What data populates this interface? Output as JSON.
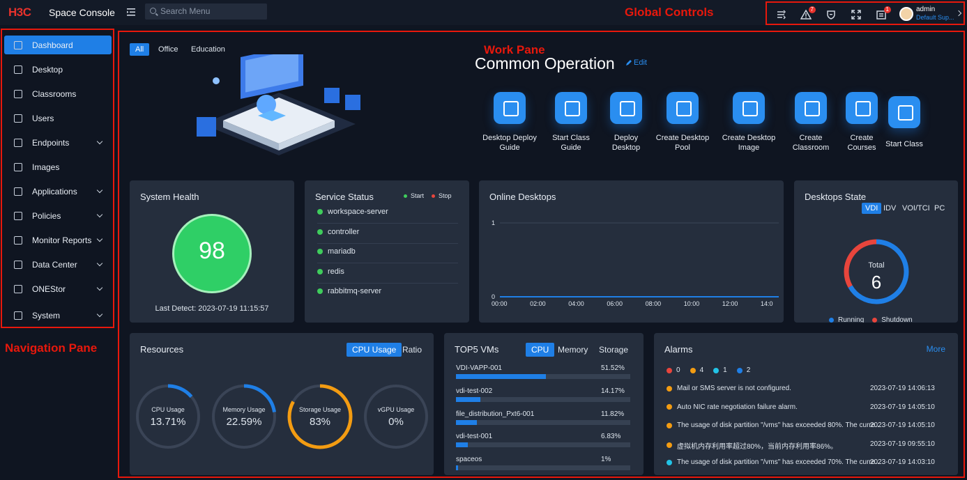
{
  "header": {
    "logo": "H3C",
    "brand": "Space Console",
    "search_placeholder": "Search Menu",
    "user": {
      "name": "admin",
      "role": "Default Sup..."
    },
    "badges": {
      "alerts": "7",
      "tasks": "1"
    }
  },
  "labels": {
    "global": "Global Controls",
    "nav": "Navigation Pane",
    "work": "Work Pane"
  },
  "nav": [
    {
      "label": "Dashboard",
      "active": true,
      "expandable": false
    },
    {
      "label": "Desktop",
      "expandable": false
    },
    {
      "label": "Classrooms",
      "expandable": false
    },
    {
      "label": "Users",
      "expandable": false
    },
    {
      "label": "Endpoints",
      "expandable": true
    },
    {
      "label": "Images",
      "expandable": false
    },
    {
      "label": "Applications",
      "expandable": true
    },
    {
      "label": "Policies",
      "expandable": true
    },
    {
      "label": "Monitor Reports",
      "expandable": true
    },
    {
      "label": "Data Center",
      "expandable": true
    },
    {
      "label": "ONEStor",
      "expandable": true
    },
    {
      "label": "System",
      "expandable": true
    }
  ],
  "scene_tabs": [
    "All",
    "Office",
    "Education"
  ],
  "common": {
    "title": "Common Operation",
    "edit": "Edit",
    "ops": [
      {
        "line1": "Desktop Deploy",
        "line2": "Guide"
      },
      {
        "line1": "Start Class",
        "line2": "Guide"
      },
      {
        "line1": "Deploy",
        "line2": "Desktop"
      },
      {
        "line1": "Create Desktop",
        "line2": "Pool"
      },
      {
        "line1": "Create Desktop",
        "line2": "Image"
      },
      {
        "line1": "Create",
        "line2": "Classroom"
      },
      {
        "line1": "Create",
        "line2": "Courses"
      },
      {
        "line1": "Start Class",
        "line2": ""
      }
    ]
  },
  "health": {
    "title": "System Health",
    "score": "98",
    "last_detect": "Last Detect: 2023-07-19 11:15:57"
  },
  "service": {
    "title": "Service Status",
    "legend_start": "Start",
    "legend_stop": "Stop",
    "items": [
      "workspace-server",
      "controller",
      "mariadb",
      "redis",
      "rabbitmq-server"
    ]
  },
  "online": {
    "title": "Online Desktops",
    "chart_data": {
      "type": "line",
      "x": [
        "00:00",
        "02:00",
        "04:00",
        "06:00",
        "08:00",
        "10:00",
        "12:00",
        "14:0"
      ],
      "series": [
        {
          "values": [
            0,
            0,
            0,
            0,
            0,
            0,
            0,
            0
          ]
        }
      ],
      "y_ticks": [
        "0",
        "1"
      ],
      "ylim": [
        0,
        1
      ],
      "grid": true
    }
  },
  "state": {
    "title": "Desktops State",
    "tabs": [
      "VDI",
      "IDV",
      "VOI/TCI",
      "PC"
    ],
    "total_label": "Total",
    "total": "6",
    "legend": [
      "Running",
      "Shutdown"
    ],
    "chart_data": {
      "type": "pie",
      "categories": [
        "Running",
        "Shutdown"
      ],
      "values": [
        4,
        2
      ],
      "colors": [
        "#1f7fe6",
        "#e8453c"
      ]
    }
  },
  "resources": {
    "title": "Resources",
    "tabs": [
      "CPU Usage",
      "Ratio"
    ],
    "gauges": [
      {
        "label": "CPU Usage",
        "value": "13.71%",
        "fraction": 0.1371,
        "color": "#1f7fe6"
      },
      {
        "label": "Memory Usage",
        "value": "22.59%",
        "fraction": 0.2259,
        "color": "#1f7fe6"
      },
      {
        "label": "Storage Usage",
        "value": "83%",
        "fraction": 0.83,
        "color": "#f39c12"
      },
      {
        "label": "vGPU Usage",
        "value": "0%",
        "fraction": 0,
        "color": "#1f7fe6"
      }
    ]
  },
  "top5": {
    "title": "TOP5 VMs",
    "tabs": [
      "CPU",
      "Memory",
      "Storage"
    ],
    "chart_data": {
      "type": "bar",
      "categories": [
        "VDI-VAPP-001",
        "vdi-test-002",
        "file_distribution_Pxt6-001",
        "vdi-test-001",
        "spaceos"
      ],
      "values": [
        51.52,
        14.17,
        11.82,
        6.83,
        1
      ],
      "labels": [
        "51.52%",
        "14.17%",
        "11.82%",
        "6.83%",
        "1%"
      ],
      "ylim": [
        0,
        100
      ]
    }
  },
  "alarms": {
    "title": "Alarms",
    "more": "More",
    "counts": [
      {
        "value": "0",
        "color": "#e8453c"
      },
      {
        "value": "4",
        "color": "#f39c12"
      },
      {
        "value": "1",
        "color": "#22c3e6"
      },
      {
        "value": "2",
        "color": "#1f7fe6"
      }
    ],
    "items": [
      {
        "text": "Mail or SMS server is not configured.",
        "time": "2023-07-19 14:06:13",
        "color": "#f39c12"
      },
      {
        "text": "Auto NIC rate negotiation failure alarm.",
        "time": "2023-07-19 14:05:10",
        "color": "#f39c12"
      },
      {
        "text": "The usage of disk partition \"/vms\" has exceeded 80%. The curre...",
        "time": "2023-07-19 14:05:10",
        "color": "#f39c12"
      },
      {
        "text": "虚拟机内存利用率超过80%，当前内存利用率86%。",
        "time": "2023-07-19 09:55:10",
        "color": "#f39c12"
      },
      {
        "text": "The usage of disk partition \"/vms\" has exceeded 70%. The curre...",
        "time": "2023-07-19 14:03:10",
        "color": "#22c3e6"
      }
    ]
  }
}
